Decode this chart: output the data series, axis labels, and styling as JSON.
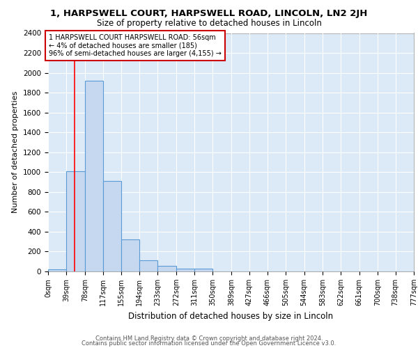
{
  "title": "1, HARPSWELL COURT, HARPSWELL ROAD, LINCOLN, LN2 2JH",
  "subtitle": "Size of property relative to detached houses in Lincoln",
  "xlabel": "Distribution of detached houses by size in Lincoln",
  "ylabel": "Number of detached properties",
  "bin_edges": [
    0,
    39,
    78,
    117,
    155,
    194,
    233,
    272,
    311,
    350,
    389,
    427,
    466,
    505,
    544,
    583,
    622,
    661,
    700,
    738,
    777
  ],
  "bar_heights": [
    20,
    1010,
    1920,
    910,
    320,
    115,
    55,
    30,
    25,
    0,
    0,
    0,
    0,
    0,
    0,
    0,
    0,
    0,
    0,
    0
  ],
  "tick_labels": [
    "0sqm",
    "39sqm",
    "78sqm",
    "117sqm",
    "155sqm",
    "194sqm",
    "233sqm",
    "272sqm",
    "311sqm",
    "350sqm",
    "389sqm",
    "427sqm",
    "466sqm",
    "505sqm",
    "544sqm",
    "583sqm",
    "622sqm",
    "661sqm",
    "700sqm",
    "738sqm",
    "777sqm"
  ],
  "bar_color": "#c5d8f0",
  "bar_edge_color": "#5b9bd5",
  "bar_edge_width": 0.8,
  "red_line_x": 56,
  "ylim": [
    0,
    2400
  ],
  "yticks": [
    0,
    200,
    400,
    600,
    800,
    1000,
    1200,
    1400,
    1600,
    1800,
    2000,
    2200,
    2400
  ],
  "annotation_text": "1 HARPSWELL COURT HARPSWELL ROAD: 56sqm\n← 4% of detached houses are smaller (185)\n96% of semi-detached houses are larger (4,155) →",
  "annotation_box_facecolor": "#ffffff",
  "annotation_box_edgecolor": "#cc0000",
  "axes_facecolor": "#dce9f7",
  "grid_color": "#ffffff",
  "title_fontsize": 9.5,
  "subtitle_fontsize": 8.5,
  "ylabel_fontsize": 8,
  "xlabel_fontsize": 8.5,
  "ytick_fontsize": 7.5,
  "xtick_fontsize": 7,
  "annot_fontsize": 7,
  "footer_line1": "Contains HM Land Registry data © Crown copyright and database right 2024.",
  "footer_line2": "Contains public sector information licensed under the Open Government Licence v3.0.",
  "footer_fontsize": 6.0
}
